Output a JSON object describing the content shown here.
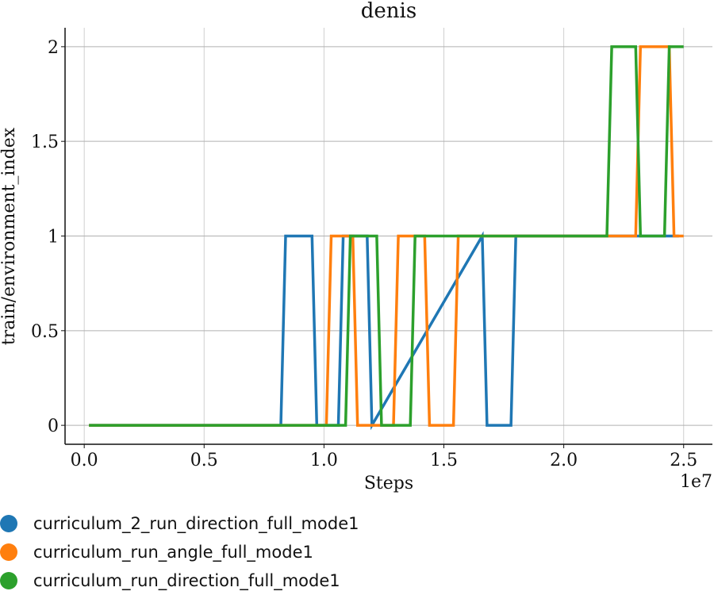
{
  "chart_data": {
    "type": "line",
    "title": "denis",
    "xlabel": "Steps",
    "ylabel": "train/environment_index",
    "x_offset_label": "1e7",
    "xlim": [
      -0.08,
      2.62
    ],
    "ylim": [
      -0.1,
      2.1
    ],
    "x_ticks": [
      0.0,
      0.5,
      1.0,
      1.5,
      2.0,
      2.5
    ],
    "x_tick_labels": [
      "0.0",
      "0.5",
      "1.0",
      "1.5",
      "2.0",
      "2.5"
    ],
    "y_ticks": [
      0,
      0.5,
      1,
      1.5,
      2
    ],
    "y_tick_labels": [
      "0",
      "0.5",
      "1",
      "1.5",
      "2"
    ],
    "grid": true,
    "legend_position": "bottom",
    "series": [
      {
        "name": "curriculum_2_run_direction_full_mode1",
        "color": "#1f77b4",
        "x": [
          0.02,
          0.82,
          0.84,
          0.95,
          0.97,
          1.06,
          1.08,
          1.18,
          1.2,
          1.66,
          1.68,
          1.78,
          1.8,
          2.4,
          2.48
        ],
        "y": [
          0,
          0,
          1,
          1,
          0,
          0,
          1,
          1,
          0,
          1,
          0,
          0,
          1,
          1,
          1
        ]
      },
      {
        "name": "curriculum_run_angle_full_mode1",
        "color": "#ff7f0e",
        "x": [
          0.02,
          1.01,
          1.03,
          1.12,
          1.14,
          1.29,
          1.31,
          1.42,
          1.44,
          1.54,
          1.56,
          2.3,
          2.32,
          2.44,
          2.46,
          2.5
        ],
        "y": [
          0,
          0,
          1,
          1,
          0,
          0,
          1,
          1,
          0,
          0,
          1,
          1,
          2,
          2,
          1,
          1
        ]
      },
      {
        "name": "curriculum_run_direction_full_mode1",
        "color": "#2ca02c",
        "x": [
          0.02,
          1.09,
          1.11,
          1.22,
          1.24,
          1.36,
          1.38,
          2.18,
          2.2,
          2.3,
          2.32,
          2.42,
          2.44,
          2.5
        ],
        "y": [
          0,
          0,
          1,
          1,
          0,
          0,
          1,
          1,
          2,
          2,
          1,
          1,
          2,
          2
        ]
      }
    ]
  }
}
